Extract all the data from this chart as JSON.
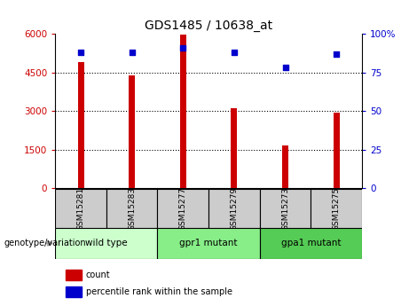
{
  "title": "GDS1485 / 10638_at",
  "samples": [
    "GSM15281",
    "GSM15283",
    "GSM15277",
    "GSM15279",
    "GSM15273",
    "GSM15275"
  ],
  "counts": [
    4900,
    4380,
    5950,
    3100,
    1650,
    2920
  ],
  "percentile_ranks": [
    88,
    88,
    91,
    88,
    78,
    87
  ],
  "groups": [
    {
      "label": "wild type",
      "color": "#ccffcc",
      "indices": [
        0,
        1
      ]
    },
    {
      "label": "gpr1 mutant",
      "color": "#88ee88",
      "indices": [
        2,
        3
      ]
    },
    {
      "label": "gpa1 mutant",
      "color": "#55cc55",
      "indices": [
        4,
        5
      ]
    }
  ],
  "ylim_left": [
    0,
    6000
  ],
  "ylim_right": [
    0,
    100
  ],
  "yticks_left": [
    0,
    1500,
    3000,
    4500,
    6000
  ],
  "ytick_labels_left": [
    "0",
    "1500",
    "3000",
    "4500",
    "6000"
  ],
  "yticks_right": [
    0,
    25,
    50,
    75,
    100
  ],
  "ytick_labels_right": [
    "0",
    "25",
    "50",
    "75",
    "100%"
  ],
  "bar_color": "#cc0000",
  "dot_color": "#0000cc",
  "sample_box_color": "#cccccc",
  "arrow_color": "#999999",
  "legend_label_count": "count",
  "legend_label_percentile": "percentile rank within the sample",
  "genotype_label": "genotype/variation",
  "background_color": "#ffffff",
  "bar_width": 0.12
}
